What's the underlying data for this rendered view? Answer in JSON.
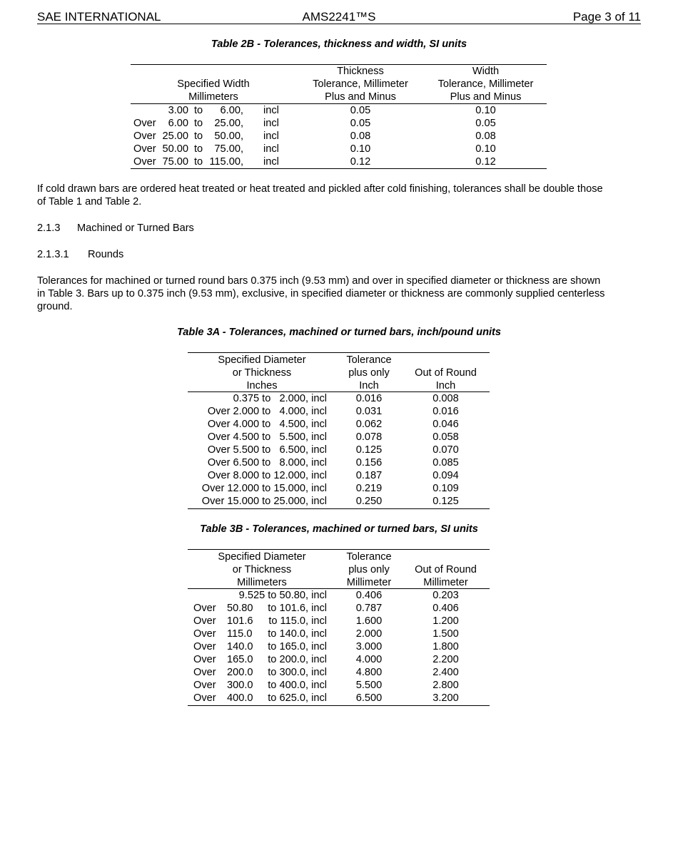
{
  "header": {
    "left": "SAE INTERNATIONAL",
    "center": "AMS2241™S",
    "right": "Page 3 of 11"
  },
  "table2b": {
    "title": "Table 2B - Tolerances, thickness and width, SI units",
    "headers": [
      [
        "",
        "Specified Width",
        "Millimeters"
      ],
      [
        "Thickness",
        "Tolerance, Millimeter",
        "Plus and Minus"
      ],
      [
        "Width",
        "Tolerance, Millimeter",
        "Plus and Minus"
      ]
    ],
    "rows": [
      {
        "pre": "",
        "from": "3.00",
        "to": "to",
        "upto": "6.00,",
        "incl": "incl",
        "thick": "0.05",
        "width": "0.10"
      },
      {
        "pre": "Over",
        "from": "6.00",
        "to": "to",
        "upto": "25.00,",
        "incl": "incl",
        "thick": "0.05",
        "width": "0.05"
      },
      {
        "pre": "Over",
        "from": "25.00",
        "to": "to",
        "upto": "50.00,",
        "incl": "incl",
        "thick": "0.08",
        "width": "0.08"
      },
      {
        "pre": "Over",
        "from": "50.00",
        "to": "to",
        "upto": "75.00,",
        "incl": "incl",
        "thick": "0.10",
        "width": "0.10"
      },
      {
        "pre": "Over",
        "from": "75.00",
        "to": "to",
        "upto": "115.00,",
        "incl": "incl",
        "thick": "0.12",
        "width": "0.12"
      }
    ]
  },
  "paragraphs": {
    "p1": [
      "If cold drawn bars are ordered heat treated or heat treated and pickled after cold finishing, tolerances shall be double those",
      "of Table 1 and Table 2."
    ],
    "s213": {
      "num": "2.1.3",
      "title": "Machined or Turned Bars"
    },
    "s2131": {
      "num": "2.1.3.1",
      "title": "Rounds"
    },
    "p2": [
      "Tolerances for machined or turned round bars 0.375 inch (9.53 mm) and over in specified diameter or thickness are shown",
      "in Table 3. Bars up to 0.375 inch (9.53 mm), exclusive, in specified diameter or thickness are commonly supplied centerless",
      "ground."
    ]
  },
  "table3a": {
    "title": "Table 3A - Tolerances, machined or turned bars, inch/pound units",
    "headers": [
      [
        "Specified Diameter",
        "or Thickness",
        "Inches"
      ],
      [
        "Tolerance",
        "plus only",
        "Inch"
      ],
      [
        "",
        "Out of Round",
        "Inch"
      ]
    ],
    "rows": [
      [
        "0.375 to   2.000, incl",
        "0.016",
        "0.008"
      ],
      [
        "Over 2.000 to   4.000, incl",
        "0.031",
        "0.016"
      ],
      [
        "Over 4.000 to   4.500, incl",
        "0.062",
        "0.046"
      ],
      [
        "Over 4.500 to   5.500, incl",
        "0.078",
        "0.058"
      ],
      [
        "Over 5.500 to   6.500, incl",
        "0.125",
        "0.070"
      ],
      [
        "Over 6.500 to   8.000, incl",
        "0.156",
        "0.085"
      ],
      [
        "Over 8.000 to 12.000, incl",
        "0.187",
        "0.094"
      ],
      [
        "Over 12.000 to 15.000, incl",
        "0.219",
        "0.109"
      ],
      [
        "Over 15.000 to 25.000, incl",
        "0.250",
        "0.125"
      ]
    ]
  },
  "table3b": {
    "title": "Table 3B - Tolerances, machined or turned bars, SI units",
    "headers": [
      [
        "Specified Diameter",
        "or Thickness",
        "Millimeters"
      ],
      [
        "Tolerance",
        "plus only",
        "Millimeter"
      ],
      [
        "",
        "Out of Round",
        "Millimeter"
      ]
    ],
    "rows": [
      {
        "pre": "",
        "from": "",
        "rest": "9.525 to 50.80, incl",
        "tol": "0.406",
        "oor": "0.203"
      },
      {
        "pre": "Over",
        "from": "50.80",
        "rest": "to 101.6, incl",
        "tol": "0.787",
        "oor": "0.406"
      },
      {
        "pre": "Over",
        "from": "101.6",
        "rest": "to 115.0, incl",
        "tol": "1.600",
        "oor": "1.200"
      },
      {
        "pre": "Over",
        "from": "115.0",
        "rest": "to 140.0, incl",
        "tol": "2.000",
        "oor": "1.500"
      },
      {
        "pre": "Over",
        "from": "140.0",
        "rest": "to 165.0, incl",
        "tol": "3.000",
        "oor": "1.800"
      },
      {
        "pre": "Over",
        "from": "165.0",
        "rest": "to 200.0, incl",
        "tol": "4.000",
        "oor": "2.200"
      },
      {
        "pre": "Over",
        "from": "200.0",
        "rest": "to 300.0, incl",
        "tol": "4.800",
        "oor": "2.400"
      },
      {
        "pre": "Over",
        "from": "300.0",
        "rest": "to 400.0, incl",
        "tol": "5.500",
        "oor": "2.800"
      },
      {
        "pre": "Over",
        "from": "400.0",
        "rest": "to 625.0, incl",
        "tol": "6.500",
        "oor": "3.200"
      }
    ]
  }
}
